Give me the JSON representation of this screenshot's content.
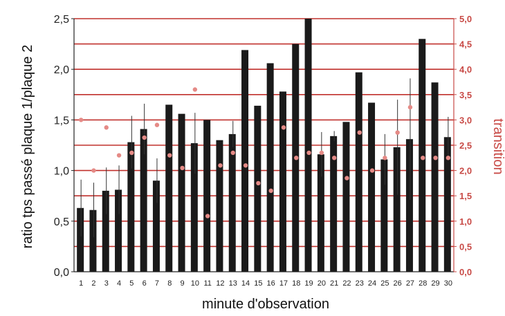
{
  "chart_data": {
    "type": "bar",
    "xlabel": "minute d'observation",
    "ylabel_left": "ratio tps passé plaque 1/plaque 2",
    "ylabel_right": "transition",
    "ylim_left": [
      0,
      2.5
    ],
    "ylim_right": [
      0,
      5
    ],
    "yticks_left": [
      "0,0",
      "0,5",
      "1,0",
      "1,5",
      "2,0",
      "2,5"
    ],
    "yticks_right": [
      "0,0",
      "0,5",
      "1,0",
      "1,5",
      "2,0",
      "2,5",
      "3,0",
      "3,5",
      "4,0",
      "4,5",
      "5,0"
    ],
    "categories": [
      "1",
      "2",
      "3",
      "4",
      "5",
      "6",
      "7",
      "8",
      "9",
      "10",
      "11",
      "12",
      "13",
      "14",
      "15",
      "16",
      "17",
      "18",
      "19",
      "20",
      "21",
      "22",
      "23",
      "24",
      "25",
      "26",
      "27",
      "28",
      "29",
      "30"
    ],
    "grid": "horizontal, right axis",
    "series": [
      {
        "kind": "bar",
        "axis": "left",
        "values": [
          0.63,
          0.61,
          0.8,
          0.81,
          1.28,
          1.41,
          0.9,
          1.65,
          1.56,
          1.27,
          1.5,
          1.3,
          1.36,
          2.19,
          1.64,
          2.06,
          1.78,
          2.25,
          2.5,
          1.16,
          1.34,
          1.48,
          1.97,
          1.67,
          1.11,
          1.23,
          1.31,
          2.3,
          1.87,
          1.33
        ],
        "errors": [
          0.28,
          0.27,
          0.23,
          0.24,
          0.26,
          0.25,
          0.22,
          0,
          0,
          0.3,
          0,
          0,
          0.13,
          0,
          0,
          0,
          0,
          0,
          0,
          0.22,
          0.05,
          0,
          0,
          0,
          0.25,
          0.47,
          0.6,
          0,
          0,
          0.2
        ]
      },
      {
        "kind": "point",
        "axis": "right",
        "values": [
          3.0,
          2.0,
          2.85,
          2.3,
          2.35,
          2.65,
          2.9,
          2.3,
          2.05,
          3.6,
          1.1,
          2.1,
          2.35,
          2.1,
          1.75,
          1.6,
          2.85,
          2.25,
          2.35,
          2.35,
          2.25,
          1.85,
          2.75,
          2.0,
          2.25,
          2.75,
          3.25,
          2.25,
          2.25,
          2.25
        ]
      }
    ],
    "colors": {
      "bar": "#1a1a1a",
      "grid": "#c0302c",
      "point": "#e58a86",
      "right_axis": "#c84a46",
      "error": "#333333"
    }
  }
}
